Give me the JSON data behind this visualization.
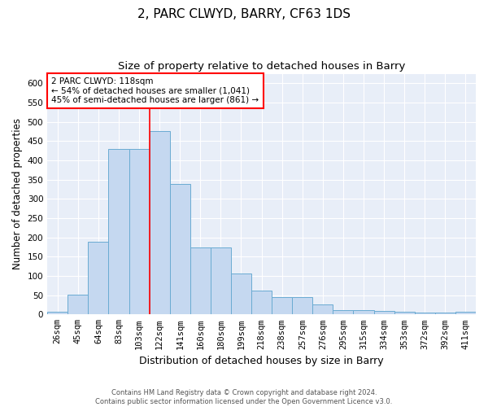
{
  "title": "2, PARC CLWYD, BARRY, CF63 1DS",
  "subtitle": "Size of property relative to detached houses in Barry",
  "xlabel": "Distribution of detached houses by size in Barry",
  "ylabel": "Number of detached properties",
  "categories": [
    "26sqm",
    "45sqm",
    "64sqm",
    "83sqm",
    "103sqm",
    "122sqm",
    "141sqm",
    "160sqm",
    "180sqm",
    "199sqm",
    "218sqm",
    "238sqm",
    "257sqm",
    "276sqm",
    "295sqm",
    "315sqm",
    "334sqm",
    "353sqm",
    "372sqm",
    "392sqm",
    "411sqm"
  ],
  "values": [
    6,
    51,
    188,
    430,
    430,
    477,
    338,
    174,
    174,
    107,
    62,
    45,
    45,
    25,
    12,
    12,
    9,
    8,
    5,
    5,
    6
  ],
  "bar_color": "#c5d8f0",
  "bar_edge_color": "#6aabd2",
  "vline_index": 5,
  "vline_color": "red",
  "annotation_text": "2 PARC CLWYD: 118sqm\n← 54% of detached houses are smaller (1,041)\n45% of semi-detached houses are larger (861) →",
  "annotation_box_color": "white",
  "annotation_box_edge": "red",
  "ylim": [
    0,
    625
  ],
  "yticks": [
    0,
    50,
    100,
    150,
    200,
    250,
    300,
    350,
    400,
    450,
    500,
    550,
    600
  ],
  "footnote1": "Contains HM Land Registry data © Crown copyright and database right 2024.",
  "footnote2": "Contains public sector information licensed under the Open Government Licence v3.0.",
  "bg_color": "#e8eef8",
  "title_fontsize": 11,
  "subtitle_fontsize": 9.5,
  "xlabel_fontsize": 9,
  "ylabel_fontsize": 8.5,
  "tick_fontsize": 7.5,
  "annot_fontsize": 7.5,
  "footnote_fontsize": 6
}
